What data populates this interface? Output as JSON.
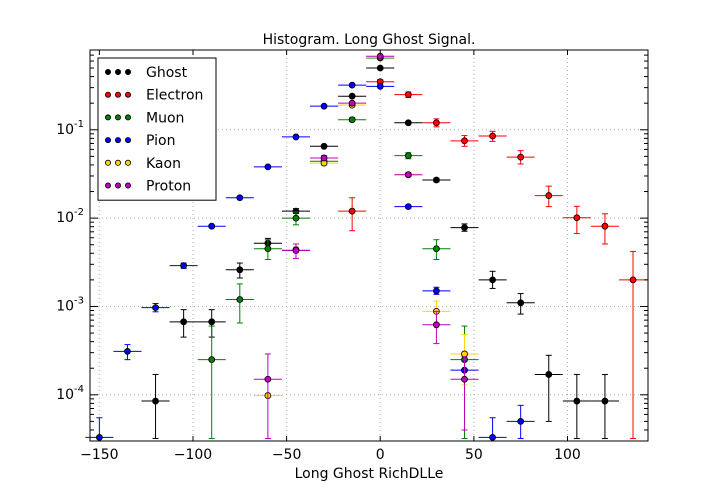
{
  "chart_data": {
    "type": "scatter",
    "title": "Histogram. Long Ghost Signal.",
    "xlabel": "Long Ghost RichDLLe",
    "ylabel": "",
    "xlim": [
      -155,
      143
    ],
    "ylim": [
      3e-05,
      0.8
    ],
    "y_scale": "log",
    "grid": true,
    "legend_position": "top-left",
    "x_ticks": [
      -150,
      -100,
      -50,
      0,
      50,
      100
    ],
    "x_tick_labels": [
      "−150",
      "−100",
      "−50",
      "0",
      "50",
      "100"
    ],
    "y_ticks": [
      0.0001,
      0.001,
      0.01,
      0.1
    ],
    "y_tick_base": "10",
    "y_tick_exps": [
      "-4",
      "-3",
      "-2",
      "-1"
    ],
    "x_error_half_width": 7.5,
    "series": [
      {
        "name": "Ghost",
        "color": "#000000",
        "points": [
          {
            "x": -120,
            "y": 8.5e-05,
            "ylo": 3.2e-05,
            "yhi": 0.00017
          },
          {
            "x": -105,
            "y": 0.00067,
            "ylo": 0.00045,
            "yhi": 0.00092
          },
          {
            "x": -90,
            "y": 0.00067,
            "ylo": 0.00045,
            "yhi": 0.00092
          },
          {
            "x": -75,
            "y": 0.0026,
            "ylo": 0.0021,
            "yhi": 0.0031
          },
          {
            "x": -60,
            "y": 0.0052,
            "ylo": 0.0046,
            "yhi": 0.0059
          },
          {
            "x": -45,
            "y": 0.012,
            "ylo": 0.0113,
            "yhi": 0.0128
          },
          {
            "x": -30,
            "y": 0.065,
            "ylo": 0.063,
            "yhi": 0.067
          },
          {
            "x": -15,
            "y": 0.24,
            "ylo": 0.236,
            "yhi": 0.245
          },
          {
            "x": 0,
            "y": 0.5,
            "ylo": 0.495,
            "yhi": 0.506
          },
          {
            "x": 15,
            "y": 0.12,
            "ylo": 0.117,
            "yhi": 0.123
          },
          {
            "x": 30,
            "y": 0.027,
            "ylo": 0.0257,
            "yhi": 0.0283
          },
          {
            "x": 45,
            "y": 0.0078,
            "ylo": 0.0071,
            "yhi": 0.0086
          },
          {
            "x": 60,
            "y": 0.002,
            "ylo": 0.0016,
            "yhi": 0.0025
          },
          {
            "x": 75,
            "y": 0.0011,
            "ylo": 0.00082,
            "yhi": 0.0014
          },
          {
            "x": 90,
            "y": 0.00017,
            "ylo": 5e-05,
            "yhi": 0.00028
          },
          {
            "x": 105,
            "y": 8.5e-05,
            "ylo": 3.2e-05,
            "yhi": 0.00017
          },
          {
            "x": 120,
            "y": 8.5e-05,
            "ylo": 3.2e-05,
            "yhi": 0.00017
          }
        ]
      },
      {
        "name": "Electron",
        "color": "#ff0000",
        "points": [
          {
            "x": -15,
            "y": 0.012,
            "ylo": 0.0072,
            "yhi": 0.017
          },
          {
            "x": 0,
            "y": 0.35,
            "ylo": 0.33,
            "yhi": 0.37
          },
          {
            "x": 15,
            "y": 0.25,
            "ylo": 0.232,
            "yhi": 0.268
          },
          {
            "x": 30,
            "y": 0.12,
            "ylo": 0.108,
            "yhi": 0.133
          },
          {
            "x": 45,
            "y": 0.075,
            "ylo": 0.065,
            "yhi": 0.086
          },
          {
            "x": 60,
            "y": 0.085,
            "ylo": 0.074,
            "yhi": 0.096
          },
          {
            "x": 75,
            "y": 0.049,
            "ylo": 0.041,
            "yhi": 0.058
          },
          {
            "x": 90,
            "y": 0.018,
            "ylo": 0.0135,
            "yhi": 0.023
          },
          {
            "x": 105,
            "y": 0.0101,
            "ylo": 0.0067,
            "yhi": 0.0136
          },
          {
            "x": 120,
            "y": 0.0081,
            "ylo": 0.0051,
            "yhi": 0.0112
          },
          {
            "x": 135,
            "y": 0.002,
            "ylo": 3.2e-05,
            "yhi": 0.0042
          }
        ]
      },
      {
        "name": "Muon",
        "color": "#008000",
        "points": [
          {
            "x": -90,
            "y": 0.00025,
            "ylo": 3.2e-05,
            "yhi": 0.0006
          },
          {
            "x": -75,
            "y": 0.0012,
            "ylo": 0.00065,
            "yhi": 0.0018
          },
          {
            "x": -60,
            "y": 0.0045,
            "ylo": 0.0034,
            "yhi": 0.0057
          },
          {
            "x": -45,
            "y": 0.01,
            "ylo": 0.0084,
            "yhi": 0.0117
          },
          {
            "x": -30,
            "y": 0.044,
            "ylo": 0.04,
            "yhi": 0.048
          },
          {
            "x": -15,
            "y": 0.13,
            "ylo": 0.124,
            "yhi": 0.137
          },
          {
            "x": 0,
            "y": 0.65,
            "ylo": 0.638,
            "yhi": 0.662
          },
          {
            "x": 15,
            "y": 0.051,
            "ylo": 0.047,
            "yhi": 0.055
          },
          {
            "x": 30,
            "y": 0.0045,
            "ylo": 0.0034,
            "yhi": 0.0057
          },
          {
            "x": 45,
            "y": 0.00025,
            "ylo": 3.2e-05,
            "yhi": 0.0006
          }
        ]
      },
      {
        "name": "Pion",
        "color": "#0000ff",
        "points": [
          {
            "x": -150,
            "y": 3.3e-05,
            "ylo": 3.2e-05,
            "yhi": 5.5e-05
          },
          {
            "x": -135,
            "y": 0.00031,
            "ylo": 0.00025,
            "yhi": 0.00037
          },
          {
            "x": -120,
            "y": 0.00097,
            "ylo": 0.00087,
            "yhi": 0.00108
          },
          {
            "x": -105,
            "y": 0.0029,
            "ylo": 0.0027,
            "yhi": 0.0031
          },
          {
            "x": -90,
            "y": 0.0081,
            "ylo": 0.0078,
            "yhi": 0.0084
          },
          {
            "x": -75,
            "y": 0.017,
            "ylo": 0.0166,
            "yhi": 0.0175
          },
          {
            "x": -60,
            "y": 0.038,
            "ylo": 0.0373,
            "yhi": 0.0387
          },
          {
            "x": -45,
            "y": 0.083,
            "ylo": 0.082,
            "yhi": 0.084
          },
          {
            "x": -30,
            "y": 0.185,
            "ylo": 0.183,
            "yhi": 0.187
          },
          {
            "x": -15,
            "y": 0.32,
            "ylo": 0.317,
            "yhi": 0.323
          },
          {
            "x": 0,
            "y": 0.31,
            "ylo": 0.307,
            "yhi": 0.313
          },
          {
            "x": 15,
            "y": 0.0135,
            "ylo": 0.013,
            "yhi": 0.014
          },
          {
            "x": 30,
            "y": 0.0015,
            "ylo": 0.00137,
            "yhi": 0.00165
          },
          {
            "x": 45,
            "y": 0.00019,
            "ylo": 0.00015,
            "yhi": 0.00024
          },
          {
            "x": 60,
            "y": 3.3e-05,
            "ylo": 3.2e-05,
            "yhi": 5.5e-05
          },
          {
            "x": 75,
            "y": 5e-05,
            "ylo": 3.2e-05,
            "yhi": 7.6e-05
          }
        ]
      },
      {
        "name": "Kaon",
        "color": "#ffd700",
        "points": [
          {
            "x": -60,
            "y": 9.8e-05,
            "ylo": 9.8e-05,
            "yhi": 9.8e-05
          },
          {
            "x": -45,
            "y": 0.0044,
            "ylo": 0.0041,
            "yhi": 0.0047
          },
          {
            "x": -30,
            "y": 0.042,
            "ylo": 0.0405,
            "yhi": 0.0435
          },
          {
            "x": -15,
            "y": 0.19,
            "ylo": 0.186,
            "yhi": 0.194
          },
          {
            "x": 0,
            "y": 0.66,
            "ylo": 0.652,
            "yhi": 0.668
          },
          {
            "x": 15,
            "y": 0.031,
            "ylo": 0.0298,
            "yhi": 0.0322
          },
          {
            "x": 30,
            "y": 0.00088,
            "ylo": 0.00064,
            "yhi": 0.00115
          },
          {
            "x": 45,
            "y": 0.00029,
            "ylo": 0.00013,
            "yhi": 0.00048
          }
        ]
      },
      {
        "name": "Proton",
        "color": "#bf00bf",
        "points": [
          {
            "x": -60,
            "y": 0.00015,
            "ylo": 3.2e-05,
            "yhi": 0.00029
          },
          {
            "x": -45,
            "y": 0.0043,
            "ylo": 0.0035,
            "yhi": 0.0051
          },
          {
            "x": -30,
            "y": 0.048,
            "ylo": 0.045,
            "yhi": 0.051
          },
          {
            "x": -15,
            "y": 0.2,
            "ylo": 0.194,
            "yhi": 0.206
          },
          {
            "x": 0,
            "y": 0.68,
            "ylo": 0.67,
            "yhi": 0.69
          },
          {
            "x": 15,
            "y": 0.031,
            "ylo": 0.0296,
            "yhi": 0.0325
          },
          {
            "x": 30,
            "y": 0.00062,
            "ylo": 0.00038,
            "yhi": 0.00088
          },
          {
            "x": 45,
            "y": 0.00015,
            "ylo": 4e-05,
            "yhi": 0.00027
          }
        ]
      }
    ]
  }
}
